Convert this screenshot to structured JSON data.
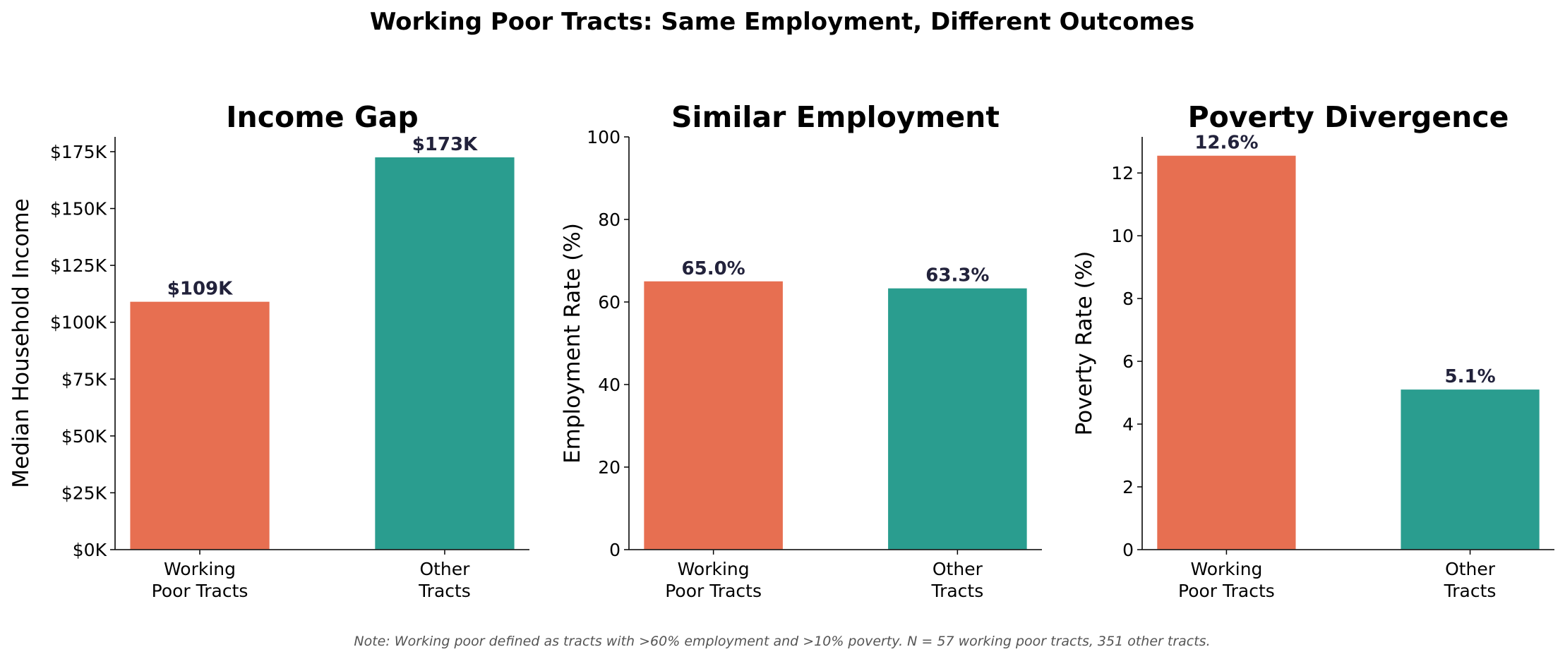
{
  "title": "Working Poor Tracts: Same Employment, Different Outcomes",
  "note": "Note: Working poor defined as tracts with >60% employment and >10% poverty. N = 57 working poor tracts, 351 other tracts.",
  "colors": {
    "working_poor": "#E76F51",
    "other": "#2A9D8F",
    "label": "#22223B"
  },
  "chart_data": [
    {
      "type": "bar",
      "title": "Income Gap",
      "ylabel": "Median Household Income",
      "categories": [
        "Working\nPoor Tracts",
        "Other\nTracts"
      ],
      "values": [
        109,
        172.5
      ],
      "value_units": "thousands of dollars",
      "data_labels": [
        "$109K",
        "$173K"
      ],
      "yticks": [
        0,
        25,
        50,
        75,
        100,
        125,
        150,
        175
      ],
      "ytick_labels": [
        "$0K",
        "$25K",
        "$50K",
        "$75K",
        "$100K",
        "$125K",
        "$150K",
        "$175K"
      ],
      "ylim": [
        0,
        181.5
      ],
      "grid": false
    },
    {
      "type": "bar",
      "title": "Similar Employment",
      "ylabel": "Employment Rate (%)",
      "categories": [
        "Working\nPoor Tracts",
        "Other\nTracts"
      ],
      "values": [
        65.0,
        63.3
      ],
      "data_labels": [
        "65.0%",
        "63.3%"
      ],
      "yticks": [
        0,
        20,
        40,
        60,
        80,
        100
      ],
      "ytick_labels": [
        "0",
        "20",
        "40",
        "60",
        "80",
        "100"
      ],
      "ylim": [
        0,
        100
      ],
      "grid": false
    },
    {
      "type": "bar",
      "title": "Poverty Divergence",
      "ylabel": "Poverty Rate (%)",
      "categories": [
        "Working\nPoor Tracts",
        "Other\nTracts"
      ],
      "values": [
        12.55,
        5.1
      ],
      "data_labels": [
        "12.6%",
        "5.1%"
      ],
      "yticks": [
        0,
        2,
        4,
        6,
        8,
        10,
        12
      ],
      "ytick_labels": [
        "0",
        "2",
        "4",
        "6",
        "8",
        "10",
        "12"
      ],
      "ylim": [
        0,
        13.15
      ],
      "grid": false
    }
  ]
}
